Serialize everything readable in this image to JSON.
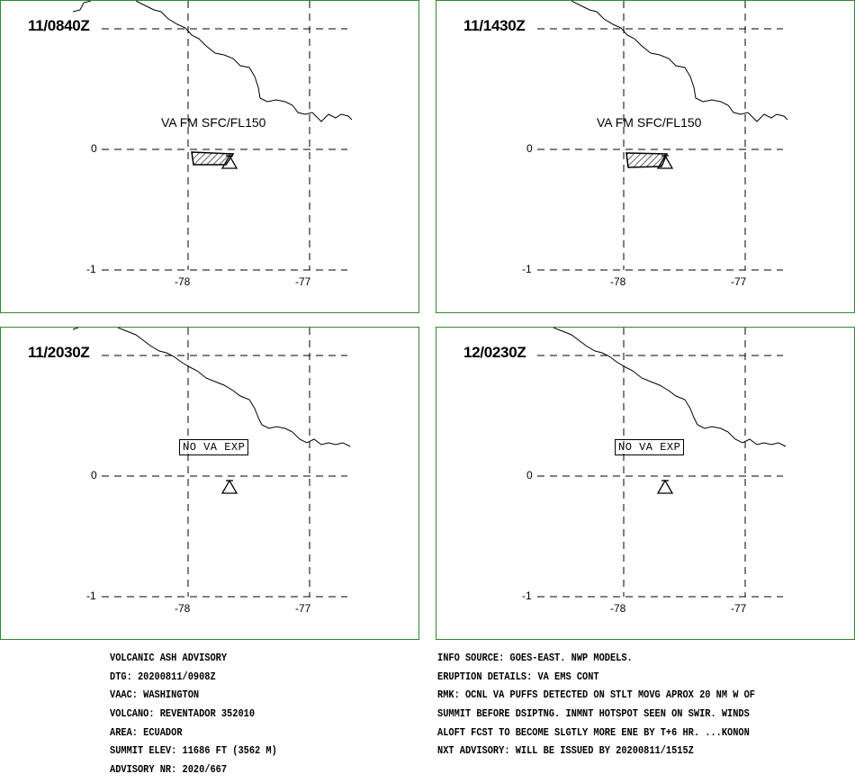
{
  "panels": [
    {
      "timestamp": "11/0840Z",
      "ash_label": "VA FM SFC/FL150",
      "lat_ticks": [
        "0",
        "-1"
      ],
      "lon_ticks": [
        "-78",
        "-77"
      ],
      "ash_area": true
    },
    {
      "timestamp": "11/1430Z",
      "ash_label": "VA FM SFC/FL150",
      "lat_ticks": [
        "0",
        "-1"
      ],
      "lon_ticks": [
        "-78",
        "-77"
      ],
      "ash_area": true
    },
    {
      "timestamp": "11/2030Z",
      "ash_label": "NO VA EXP",
      "lat_ticks": [
        "0",
        "-1"
      ],
      "lon_ticks": [
        "-78",
        "-77"
      ],
      "ash_area": false
    },
    {
      "timestamp": "12/0230Z",
      "ash_label": "NO VA EXP",
      "lat_ticks": [
        "0",
        "-1"
      ],
      "lon_ticks": [
        "-78",
        "-77"
      ],
      "ash_area": false
    }
  ],
  "advisory_left": [
    "VOLCANIC ASH ADVISORY",
    "DTG: 20200811/0908Z",
    "VAAC: WASHINGTON",
    "VOLCANO: REVENTADOR 352010",
    "AREA: ECUADOR",
    "SUMMIT ELEV: 11686 FT (3562 M)",
    "ADVISORY NR: 2020/667"
  ],
  "advisory_right": [
    "INFO SOURCE: GOES-EAST. NWP MODELS.",
    "ERUPTION DETAILS: VA EMS CONT",
    "RMK: OCNL VA PUFFS DETECTED ON STLT MOVG APROX 20 NM W OF",
    "SUMMIT BEFORE DSIPTNG. INMNT HOTSPOT SEEN ON SWIR. WINDS",
    "ALOFT FCST TO BECOME SLGTLY MORE ENE BY T+6 HR. ...KONON",
    "NXT ADVISORY: WILL BE ISSUED BY 20200811/1515Z"
  ],
  "colors": {
    "frame": "#2e8b2e",
    "ink": "#000000"
  },
  "icons": {
    "volcano": "volcano-icon"
  }
}
